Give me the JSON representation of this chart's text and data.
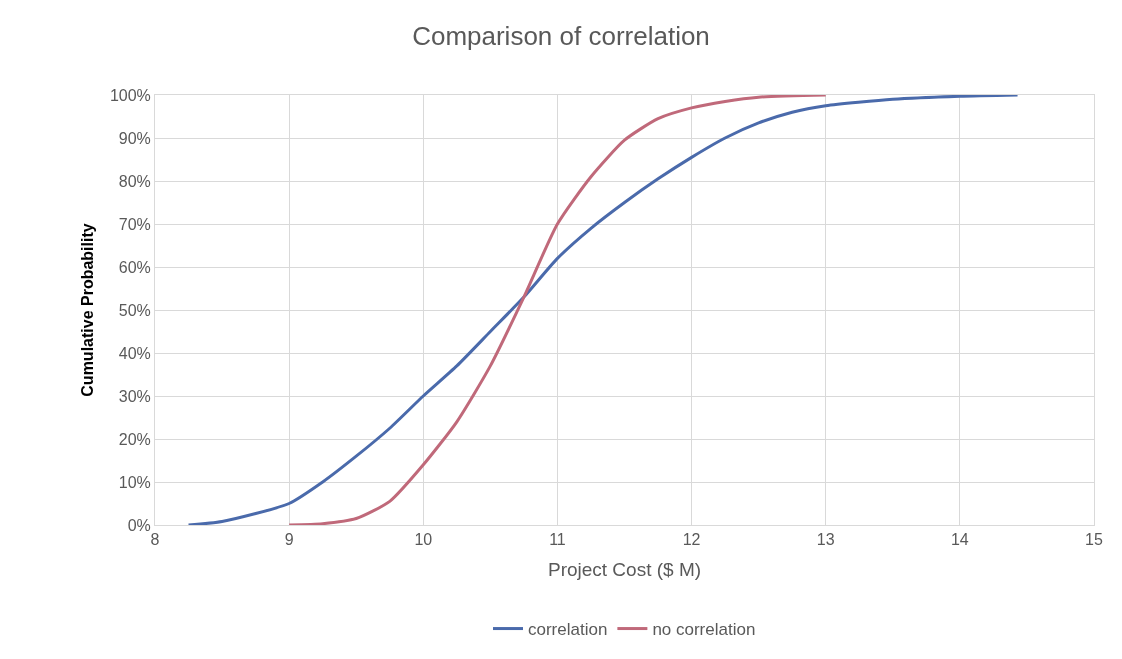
{
  "chart_data": {
    "type": "line",
    "title": "Comparison of correlation",
    "xlabel": "Project Cost ($ M)",
    "ylabel": "Cumulative Probability",
    "xlim": [
      8,
      15
    ],
    "xticks": [
      8,
      9,
      10,
      11,
      12,
      13,
      14,
      15
    ],
    "ylim": [
      0,
      100
    ],
    "yticks": [
      {
        "value": 0,
        "label": "0%"
      },
      {
        "value": 10,
        "label": "10%"
      },
      {
        "value": 20,
        "label": "20%"
      },
      {
        "value": 30,
        "label": "30%"
      },
      {
        "value": 40,
        "label": "40%"
      },
      {
        "value": 50,
        "label": "50%"
      },
      {
        "value": 60,
        "label": "60%"
      },
      {
        "value": 70,
        "label": "70%"
      },
      {
        "value": 80,
        "label": "80%"
      },
      {
        "value": 90,
        "label": "90%"
      },
      {
        "value": 100,
        "label": "100%"
      }
    ],
    "grid": true,
    "legend": "bottom",
    "marker": "none",
    "line_style": "solid",
    "series": [
      {
        "name": "correlation",
        "color": "#4a6aab",
        "x": [
          8.25,
          8.5,
          9,
          9.25,
          9.5,
          9.75,
          10,
          10.25,
          10.5,
          10.75,
          11,
          11.25,
          11.5,
          11.75,
          12,
          12.25,
          12.5,
          12.75,
          13,
          13.5,
          14,
          14.43
        ],
        "values": [
          0,
          0.8,
          5,
          10,
          16,
          22.5,
          30,
          37,
          45,
          53,
          62,
          69,
          75,
          80.5,
          85.5,
          90,
          93.5,
          96,
          97.5,
          99,
          99.7,
          100
        ]
      },
      {
        "name": "no correlation",
        "color": "#c0697a",
        "x": [
          9,
          9.25,
          9.5,
          9.75,
          10,
          10.25,
          10.5,
          10.75,
          11,
          11.25,
          11.5,
          11.75,
          12,
          12.25,
          12.5,
          13
        ],
        "values": [
          0,
          0.3,
          1.5,
          5.5,
          14,
          24,
          37,
          53,
          70,
          81,
          89.5,
          94.5,
          97,
          98.5,
          99.5,
          100
        ]
      }
    ]
  }
}
